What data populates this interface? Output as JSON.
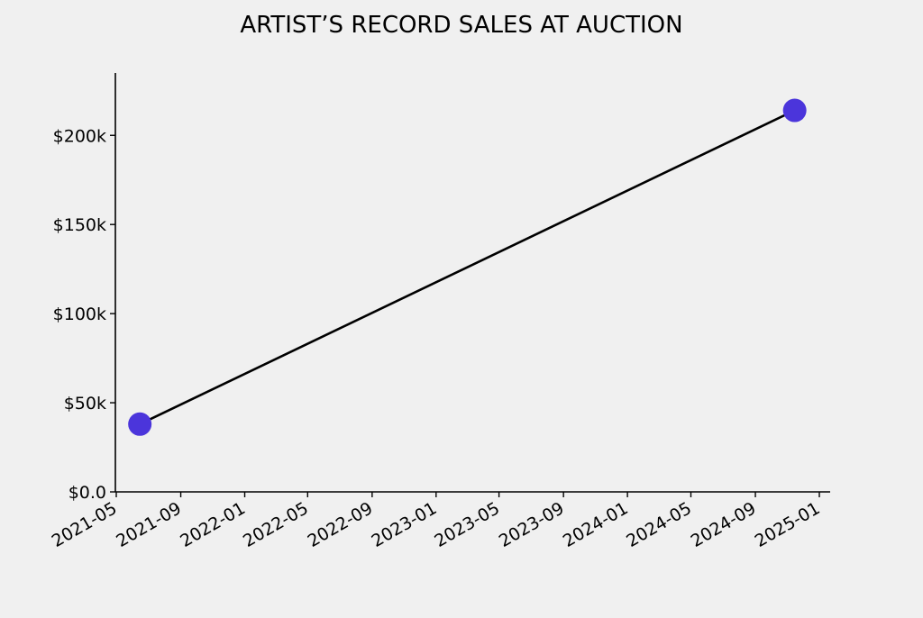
{
  "chart_data": {
    "type": "line",
    "title": "ARTIST’S RECORD SALES AT AUCTION",
    "xlabel": "",
    "ylabel": "",
    "x_axis_type": "date",
    "xlim": [
      "2021-05-01",
      "2025-01-01"
    ],
    "ylim": [
      0,
      235000
    ],
    "x_ticks": [
      "2021-05",
      "2021-09",
      "2022-01",
      "2022-05",
      "2022-09",
      "2023-01",
      "2023-05",
      "2023-09",
      "2024-01",
      "2024-05",
      "2024-09",
      "2025-01"
    ],
    "y_ticks": [
      {
        "value": 0,
        "label": "$0.0"
      },
      {
        "value": 50000,
        "label": "$50k"
      },
      {
        "value": 100000,
        "label": "$100k"
      },
      {
        "value": 150000,
        "label": "$150k"
      },
      {
        "value": 200000,
        "label": "$200k"
      }
    ],
    "series": [
      {
        "points": [
          {
            "x": "2021-06-15",
            "y": 38000
          },
          {
            "x": "2024-11-15",
            "y": 214000
          }
        ]
      }
    ],
    "line_color": "#000000",
    "marker_color": "#4b35db",
    "background": "#f0f0f0",
    "grid": false,
    "legend": "none"
  }
}
